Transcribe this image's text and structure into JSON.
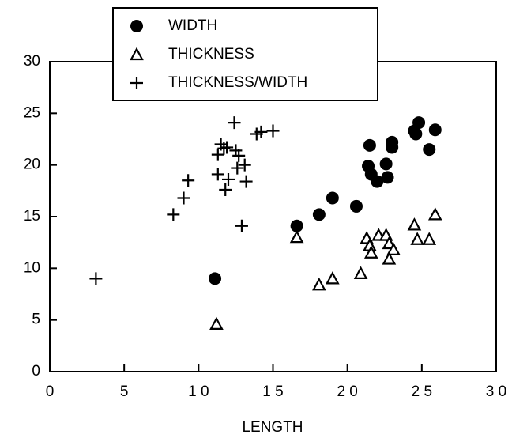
{
  "chart_data": {
    "type": "scatter",
    "x_label": "LENGTH",
    "xlim": [
      0,
      30
    ],
    "ylim": [
      0,
      30
    ],
    "xticks": [
      0,
      5,
      {
        "value": 10,
        "label": "1 0"
      },
      {
        "value": 15,
        "label": "1 5"
      },
      {
        "value": 20,
        "label": "2 0"
      },
      {
        "value": 25,
        "label": "2 5"
      },
      {
        "value": 30,
        "label": "3 0"
      }
    ],
    "yticks": [
      0,
      5,
      10,
      15,
      20,
      25,
      30
    ],
    "legend": "top-left",
    "series": [
      {
        "name": "WIDTH",
        "marker": "circle",
        "color": "#000000",
        "x": [
          11.1,
          16.6,
          18.1,
          19.0,
          20.6,
          21.5,
          21.4,
          21.6,
          22.0,
          22.6,
          22.7,
          23.0,
          23.0,
          24.5,
          24.8,
          24.6,
          25.5,
          25.9
        ],
        "values": [
          9.0,
          14.1,
          15.2,
          16.8,
          16.0,
          21.9,
          19.9,
          19.1,
          18.4,
          20.1,
          18.8,
          22.2,
          21.7,
          23.3,
          24.1,
          23.0,
          21.5,
          23.4
        ]
      },
      {
        "name": "THICKNESS",
        "marker": "triangle",
        "color": "#000000",
        "x": [
          11.2,
          16.6,
          18.1,
          19.0,
          20.9,
          21.3,
          21.5,
          21.6,
          22.1,
          22.6,
          22.8,
          22.8,
          23.1,
          24.5,
          24.7,
          25.5,
          25.9
        ],
        "values": [
          4.6,
          13.0,
          8.4,
          9.0,
          9.5,
          12.9,
          12.2,
          11.5,
          13.2,
          13.2,
          12.4,
          10.9,
          11.8,
          14.2,
          12.8,
          12.8,
          15.2
        ]
      },
      {
        "name": "THICKNESS/WIDTH",
        "marker": "plus",
        "color": "#000000",
        "x": [
          3.1,
          8.3,
          9.0,
          9.3,
          11.3,
          11.3,
          11.5,
          11.7,
          11.9,
          11.8,
          12.0,
          12.4,
          12.5,
          12.7,
          12.6,
          13.1,
          13.2,
          12.9,
          13.9,
          14.2,
          15.0
        ],
        "values": [
          9.0,
          15.2,
          16.8,
          18.5,
          19.1,
          21.0,
          22.0,
          21.6,
          21.7,
          17.6,
          18.6,
          24.1,
          21.4,
          20.9,
          19.7,
          20.0,
          18.4,
          14.1,
          23.0,
          23.2,
          23.3
        ]
      }
    ]
  }
}
